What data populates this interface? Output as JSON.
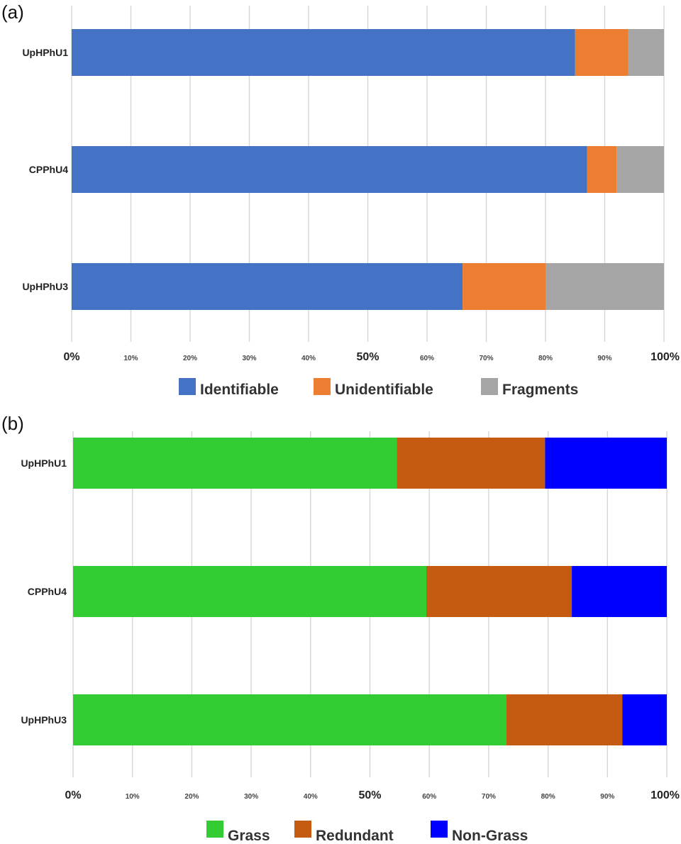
{
  "chart_data": [
    {
      "panel_label": "(a)",
      "type": "bar",
      "orientation": "horizontal",
      "stacked": true,
      "categories": [
        "UpHPhU1",
        "CPPhU4",
        "UpHPhU3"
      ],
      "series": [
        {
          "name": "Identifiable",
          "color": "#4472C4",
          "values": [
            85,
            87,
            66
          ]
        },
        {
          "name": "Unidentifiable",
          "color": "#ED7D31",
          "values": [
            9,
            5,
            14
          ]
        },
        {
          "name": "Fragments",
          "color": "#A5A5A5",
          "values": [
            6,
            8,
            20
          ]
        }
      ],
      "x_ticks": [
        "0%",
        "10%",
        "20%",
        "30%",
        "40%",
        "50%",
        "60%",
        "70%",
        "80%",
        "90%",
        "100%"
      ],
      "xlim": [
        0,
        100
      ],
      "grid": "vertical",
      "legend": "bottom"
    },
    {
      "panel_label": "(b)",
      "type": "bar",
      "orientation": "horizontal",
      "stacked": true,
      "categories": [
        "UpHPhU1",
        "CPPhU4",
        "UpHPhU3"
      ],
      "series": [
        {
          "name": "Grass",
          "color": "#33CC33",
          "values": [
            54.5,
            59.5,
            73
          ]
        },
        {
          "name": "Redundant",
          "color": "#C55A11",
          "values": [
            25,
            24.5,
            19.5
          ]
        },
        {
          "name": "Non-Grass",
          "color": "#0000FF",
          "values": [
            20.5,
            16,
            7.5
          ]
        }
      ],
      "x_ticks": [
        "0%",
        "10%",
        "20%",
        "30%",
        "40%",
        "50%",
        "60%",
        "70%",
        "80%",
        "90%",
        "100%"
      ],
      "xlim": [
        0,
        100
      ],
      "grid": "vertical",
      "legend": "bottom"
    }
  ]
}
